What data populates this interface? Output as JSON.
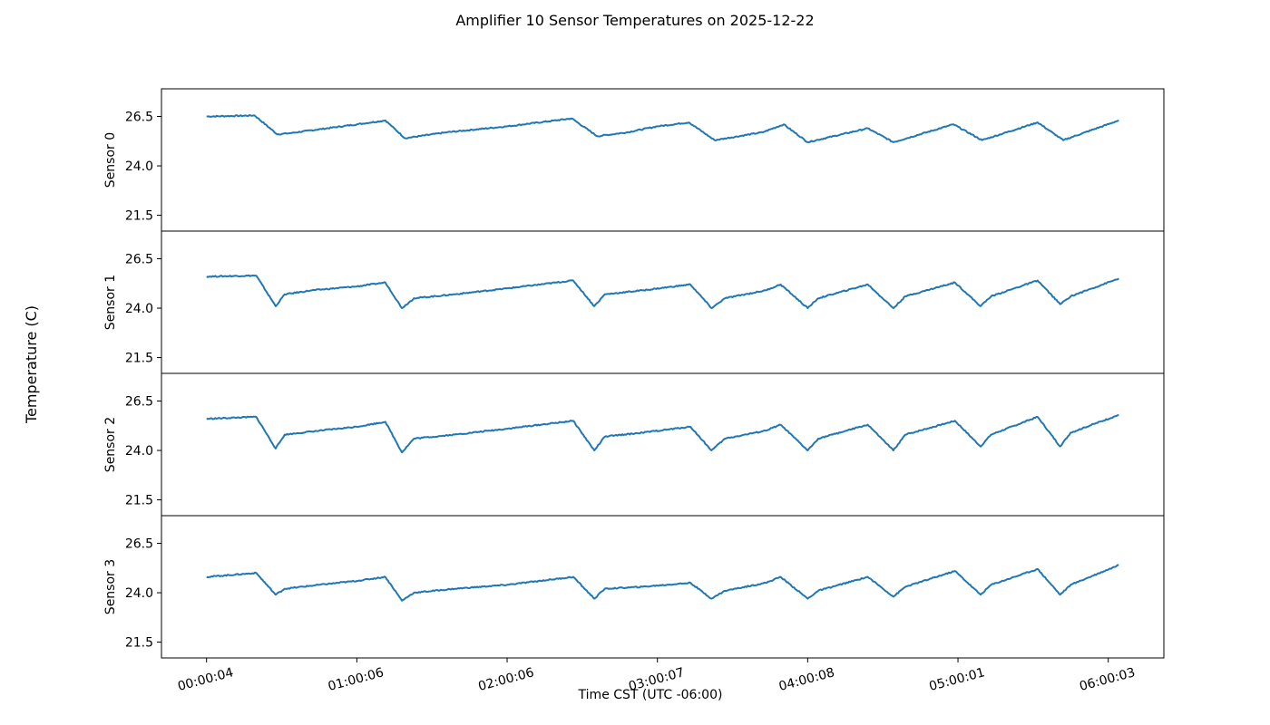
{
  "chart_data": {
    "type": "line",
    "title": "Amplifier 10 Sensor Temperatures on 2025-12-22",
    "xlabel": "Time CST (UTC -06:00)",
    "ylabel": "Temperature (C)",
    "xlim": [
      -0.3,
      6.37
    ],
    "ylim": [
      20.7,
      27.9
    ],
    "yticks": [
      21.5,
      24.0,
      26.5
    ],
    "xticks": [
      {
        "value": 0.0,
        "label": "00:00:04"
      },
      {
        "value": 1.0,
        "label": "01:00:06"
      },
      {
        "value": 2.0,
        "label": "02:00:06"
      },
      {
        "value": 3.0,
        "label": "03:00:07"
      },
      {
        "value": 4.0,
        "label": "04:00:08"
      },
      {
        "value": 5.0,
        "label": "05:00:01"
      },
      {
        "value": 6.0,
        "label": "06:00:03"
      }
    ],
    "line_color": "#1f77b4",
    "series": [
      {
        "name": "Sensor 0",
        "x": [
          0.0,
          0.32,
          0.47,
          0.55,
          1.0,
          1.19,
          1.32,
          1.6,
          2.0,
          2.43,
          2.6,
          2.8,
          3.0,
          3.21,
          3.38,
          3.7,
          3.84,
          4.0,
          4.4,
          4.57,
          4.97,
          5.16,
          5.53,
          5.7,
          6.07
        ],
        "values": [
          26.5,
          26.55,
          25.6,
          25.65,
          26.1,
          26.3,
          25.4,
          25.7,
          26.0,
          26.4,
          25.5,
          25.7,
          26.0,
          26.2,
          25.3,
          25.7,
          26.1,
          25.2,
          25.9,
          25.2,
          26.1,
          25.3,
          26.2,
          25.3,
          26.3
        ]
      },
      {
        "name": "Sensor 1",
        "x": [
          0.0,
          0.33,
          0.46,
          0.52,
          0.7,
          1.0,
          1.19,
          1.3,
          1.38,
          1.65,
          2.0,
          2.44,
          2.58,
          2.65,
          2.9,
          3.22,
          3.36,
          3.45,
          3.72,
          3.82,
          4.0,
          4.07,
          4.4,
          4.57,
          4.65,
          4.98,
          5.15,
          5.22,
          5.53,
          5.68,
          5.75,
          6.07
        ],
        "values": [
          25.6,
          25.65,
          24.1,
          24.7,
          24.9,
          25.1,
          25.3,
          24.0,
          24.5,
          24.7,
          25.0,
          25.4,
          24.1,
          24.7,
          24.9,
          25.2,
          24.0,
          24.5,
          24.9,
          25.2,
          24.0,
          24.5,
          25.2,
          24.0,
          24.6,
          25.3,
          24.1,
          24.6,
          25.4,
          24.2,
          24.6,
          25.5
        ]
      },
      {
        "name": "Sensor 2",
        "x": [
          0.0,
          0.33,
          0.46,
          0.52,
          0.75,
          1.0,
          1.19,
          1.3,
          1.38,
          1.65,
          2.0,
          2.44,
          2.58,
          2.65,
          2.9,
          3.22,
          3.36,
          3.45,
          3.72,
          3.82,
          4.0,
          4.07,
          4.4,
          4.57,
          4.65,
          4.98,
          5.15,
          5.22,
          5.53,
          5.68,
          5.75,
          6.07
        ],
        "values": [
          25.6,
          25.7,
          24.1,
          24.8,
          25.0,
          25.2,
          25.45,
          23.9,
          24.6,
          24.8,
          25.1,
          25.5,
          24.0,
          24.7,
          24.9,
          25.2,
          24.0,
          24.6,
          25.0,
          25.3,
          24.0,
          24.6,
          25.3,
          24.0,
          24.8,
          25.5,
          24.2,
          24.8,
          25.7,
          24.2,
          24.9,
          25.8
        ]
      },
      {
        "name": "Sensor 3",
        "x": [
          0.0,
          0.33,
          0.46,
          0.52,
          0.75,
          1.0,
          1.19,
          1.3,
          1.38,
          1.65,
          2.0,
          2.44,
          2.58,
          2.65,
          2.9,
          3.22,
          3.36,
          3.45,
          3.72,
          3.82,
          4.0,
          4.07,
          4.4,
          4.57,
          4.65,
          4.98,
          5.15,
          5.22,
          5.53,
          5.68,
          5.75,
          6.07
        ],
        "values": [
          24.8,
          25.0,
          23.9,
          24.2,
          24.4,
          24.6,
          24.8,
          23.6,
          24.0,
          24.2,
          24.4,
          24.8,
          23.7,
          24.2,
          24.3,
          24.5,
          23.7,
          24.1,
          24.5,
          24.8,
          23.7,
          24.1,
          24.8,
          23.8,
          24.3,
          25.1,
          23.9,
          24.4,
          25.2,
          23.9,
          24.4,
          25.4
        ]
      }
    ]
  }
}
